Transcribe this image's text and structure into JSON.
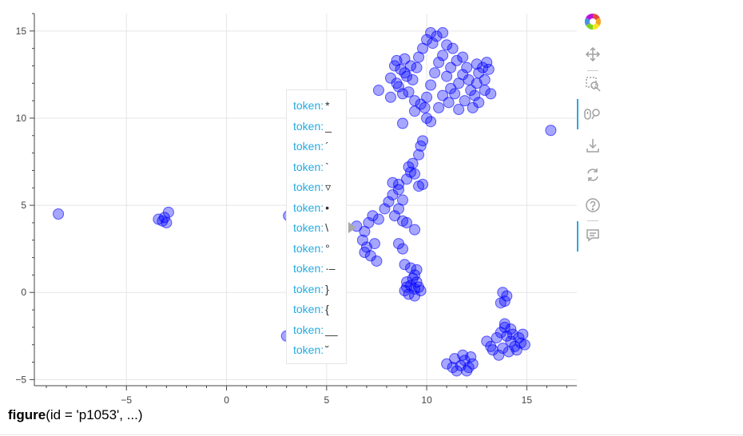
{
  "chart_data": {
    "type": "scatter",
    "xlim": [
      -9.6,
      17.5
    ],
    "ylim": [
      -5.35,
      16.0
    ],
    "x_ticks": [
      -5,
      0,
      5,
      10,
      15
    ],
    "y_ticks": [
      -5,
      0,
      5,
      10,
      15
    ],
    "x_tick_labels": [
      "−5",
      "0",
      "5",
      "10",
      "15"
    ],
    "y_tick_labels": [
      "−5",
      "0",
      "5",
      "10",
      "15"
    ],
    "grid": true,
    "marker_color": "#0000ff",
    "points": [
      {
        "x": -8.4,
        "y": 4.5
      },
      {
        "x": 16.2,
        "y": 9.3
      },
      {
        "x": -3.4,
        "y": 4.2
      },
      {
        "x": -3.1,
        "y": 4.3
      },
      {
        "x": -2.9,
        "y": 4.6
      },
      {
        "x": -3.0,
        "y": 4.0
      },
      {
        "x": -3.2,
        "y": 4.1
      },
      {
        "x": 3.1,
        "y": 4.4
      },
      {
        "x": 3.0,
        "y": -2.5
      },
      {
        "x": 3.3,
        "y": 4.6
      },
      {
        "x": 6.5,
        "y": 3.8
      },
      {
        "x": 6.9,
        "y": 3.5
      },
      {
        "x": 7.1,
        "y": 4.0
      },
      {
        "x": 7.3,
        "y": 4.4
      },
      {
        "x": 7.6,
        "y": 4.2
      },
      {
        "x": 7.9,
        "y": 4.8
      },
      {
        "x": 8.1,
        "y": 5.2
      },
      {
        "x": 8.3,
        "y": 5.6
      },
      {
        "x": 8.6,
        "y": 5.9
      },
      {
        "x": 8.3,
        "y": 6.3
      },
      {
        "x": 8.6,
        "y": 6.2
      },
      {
        "x": 8.8,
        "y": 5.3
      },
      {
        "x": 8.6,
        "y": 4.8
      },
      {
        "x": 8.4,
        "y": 4.4
      },
      {
        "x": 8.8,
        "y": 4.1
      },
      {
        "x": 9.0,
        "y": 4.0
      },
      {
        "x": 9.4,
        "y": 3.6
      },
      {
        "x": 6.8,
        "y": 3.0
      },
      {
        "x": 7.0,
        "y": 2.6
      },
      {
        "x": 7.4,
        "y": 2.8
      },
      {
        "x": 6.9,
        "y": 2.3
      },
      {
        "x": 7.2,
        "y": 2.1
      },
      {
        "x": 7.5,
        "y": 1.8
      },
      {
        "x": 8.6,
        "y": 2.8
      },
      {
        "x": 8.8,
        "y": 2.5
      },
      {
        "x": 8.9,
        "y": 1.6
      },
      {
        "x": 9.2,
        "y": 1.4
      },
      {
        "x": 9.5,
        "y": 1.3
      },
      {
        "x": 9.4,
        "y": 1.0
      },
      {
        "x": 9.5,
        "y": 0.6
      },
      {
        "x": 9.2,
        "y": 0.4
      },
      {
        "x": 9.0,
        "y": 0.3
      },
      {
        "x": 8.9,
        "y": 0.1
      },
      {
        "x": 9.1,
        "y": -0.1
      },
      {
        "x": 9.4,
        "y": 0.2
      },
      {
        "x": 9.6,
        "y": 0.3
      },
      {
        "x": 9.7,
        "y": 0.1
      },
      {
        "x": 9.4,
        "y": -0.2
      },
      {
        "x": 9.0,
        "y": 0.6
      },
      {
        "x": 9.3,
        "y": 0.8
      },
      {
        "x": 9.1,
        "y": 7.2
      },
      {
        "x": 9.3,
        "y": 7.4
      },
      {
        "x": 9.6,
        "y": 7.9
      },
      {
        "x": 9.7,
        "y": 8.4
      },
      {
        "x": 9.8,
        "y": 8.7
      },
      {
        "x": 9.4,
        "y": 6.8
      },
      {
        "x": 9.0,
        "y": 6.5
      },
      {
        "x": 9.2,
        "y": 6.9
      },
      {
        "x": 9.6,
        "y": 6.1
      },
      {
        "x": 9.8,
        "y": 6.2
      },
      {
        "x": 8.8,
        "y": 9.7
      },
      {
        "x": 9.4,
        "y": 10.4
      },
      {
        "x": 7.6,
        "y": 11.6
      },
      {
        "x": 8.2,
        "y": 12.3
      },
      {
        "x": 8.5,
        "y": 13.3
      },
      {
        "x": 8.7,
        "y": 12.8
      },
      {
        "x": 8.9,
        "y": 12.6
      },
      {
        "x": 8.6,
        "y": 11.8
      },
      {
        "x": 8.8,
        "y": 11.4
      },
      {
        "x": 8.2,
        "y": 11.2
      },
      {
        "x": 9.1,
        "y": 11.5
      },
      {
        "x": 9.3,
        "y": 12.2
      },
      {
        "x": 9.5,
        "y": 12.9
      },
      {
        "x": 9.6,
        "y": 13.5
      },
      {
        "x": 9.8,
        "y": 14.0
      },
      {
        "x": 9.4,
        "y": 11.0
      },
      {
        "x": 9.7,
        "y": 10.8
      },
      {
        "x": 9.9,
        "y": 10.6
      },
      {
        "x": 10.0,
        "y": 10.0
      },
      {
        "x": 10.2,
        "y": 9.8
      },
      {
        "x": 10.0,
        "y": 11.2
      },
      {
        "x": 10.2,
        "y": 11.9
      },
      {
        "x": 10.4,
        "y": 12.6
      },
      {
        "x": 10.6,
        "y": 13.2
      },
      {
        "x": 10.8,
        "y": 13.6
      },
      {
        "x": 10.3,
        "y": 14.3
      },
      {
        "x": 10.5,
        "y": 14.7
      },
      {
        "x": 10.8,
        "y": 14.9
      },
      {
        "x": 10.2,
        "y": 14.9
      },
      {
        "x": 10.0,
        "y": 14.5
      },
      {
        "x": 11.0,
        "y": 14.2
      },
      {
        "x": 11.3,
        "y": 14.0
      },
      {
        "x": 11.0,
        "y": 12.4
      },
      {
        "x": 11.2,
        "y": 11.7
      },
      {
        "x": 10.8,
        "y": 11.3
      },
      {
        "x": 10.6,
        "y": 10.6
      },
      {
        "x": 11.1,
        "y": 10.9
      },
      {
        "x": 11.4,
        "y": 11.4
      },
      {
        "x": 11.6,
        "y": 12.0
      },
      {
        "x": 11.8,
        "y": 12.5
      },
      {
        "x": 12.0,
        "y": 12.9
      },
      {
        "x": 12.1,
        "y": 12.2
      },
      {
        "x": 12.2,
        "y": 11.6
      },
      {
        "x": 11.9,
        "y": 11.0
      },
      {
        "x": 11.6,
        "y": 10.5
      },
      {
        "x": 12.4,
        "y": 11.3
      },
      {
        "x": 12.5,
        "y": 12.0
      },
      {
        "x": 12.6,
        "y": 12.6
      },
      {
        "x": 12.5,
        "y": 13.1
      },
      {
        "x": 12.9,
        "y": 12.2
      },
      {
        "x": 12.9,
        "y": 11.6
      },
      {
        "x": 12.6,
        "y": 10.9
      },
      {
        "x": 12.3,
        "y": 10.6
      },
      {
        "x": 13.2,
        "y": 11.4
      },
      {
        "x": 13.1,
        "y": 12.8
      },
      {
        "x": 13.0,
        "y": 13.2
      },
      {
        "x": 12.8,
        "y": 12.9
      },
      {
        "x": 11.8,
        "y": 13.5
      },
      {
        "x": 11.5,
        "y": 13.3
      },
      {
        "x": 11.2,
        "y": 12.9
      },
      {
        "x": 8.5,
        "y": 12.0
      },
      {
        "x": 9.0,
        "y": 12.4
      },
      {
        "x": 8.4,
        "y": 13.0
      },
      {
        "x": 8.9,
        "y": 13.4
      },
      {
        "x": 9.2,
        "y": 13.0
      },
      {
        "x": 13.8,
        "y": 0.0
      },
      {
        "x": 14.0,
        "y": -0.2
      },
      {
        "x": 13.9,
        "y": -0.5
      },
      {
        "x": 13.7,
        "y": -0.6
      },
      {
        "x": 13.0,
        "y": -2.8
      },
      {
        "x": 13.2,
        "y": -3.1
      },
      {
        "x": 13.5,
        "y": -2.6
      },
      {
        "x": 13.7,
        "y": -2.3
      },
      {
        "x": 13.9,
        "y": -2.0
      },
      {
        "x": 14.0,
        "y": -2.5
      },
      {
        "x": 14.2,
        "y": -2.8
      },
      {
        "x": 14.4,
        "y": -3.1
      },
      {
        "x": 14.3,
        "y": -2.4
      },
      {
        "x": 14.6,
        "y": -2.6
      },
      {
        "x": 14.8,
        "y": -2.4
      },
      {
        "x": 14.7,
        "y": -2.9
      },
      {
        "x": 14.5,
        "y": -3.3
      },
      {
        "x": 14.1,
        "y": -3.4
      },
      {
        "x": 13.8,
        "y": -3.2
      },
      {
        "x": 13.6,
        "y": -3.6
      },
      {
        "x": 13.3,
        "y": -3.3
      },
      {
        "x": 14.9,
        "y": -3.0
      },
      {
        "x": 13.9,
        "y": -1.8
      },
      {
        "x": 14.2,
        "y": -2.1
      },
      {
        "x": 11.0,
        "y": -4.1
      },
      {
        "x": 11.3,
        "y": -4.3
      },
      {
        "x": 11.5,
        "y": -4.5
      },
      {
        "x": 11.7,
        "y": -4.2
      },
      {
        "x": 11.9,
        "y": -3.9
      },
      {
        "x": 12.1,
        "y": -4.3
      },
      {
        "x": 12.3,
        "y": -4.1
      },
      {
        "x": 11.4,
        "y": -3.8
      },
      {
        "x": 11.8,
        "y": -3.6
      },
      {
        "x": 12.2,
        "y": -3.7
      },
      {
        "x": 12.0,
        "y": -4.5
      }
    ]
  },
  "toolbar": {
    "icons": [
      "bokeh-logo-icon",
      "pan-icon",
      "box-zoom-icon",
      "wheel-zoom-icon",
      "save-icon",
      "reset-icon",
      "help-icon",
      "hover-icon"
    ]
  },
  "tooltip": {
    "key": "token:",
    "values": [
      "*",
      "_",
      "´",
      "`",
      "▿",
      "•",
      "\\",
      "°",
      "·–",
      "}",
      "{",
      "__",
      "˘"
    ]
  },
  "caption": {
    "func": "figure",
    "args": "(id = 'p1053', ...)"
  }
}
